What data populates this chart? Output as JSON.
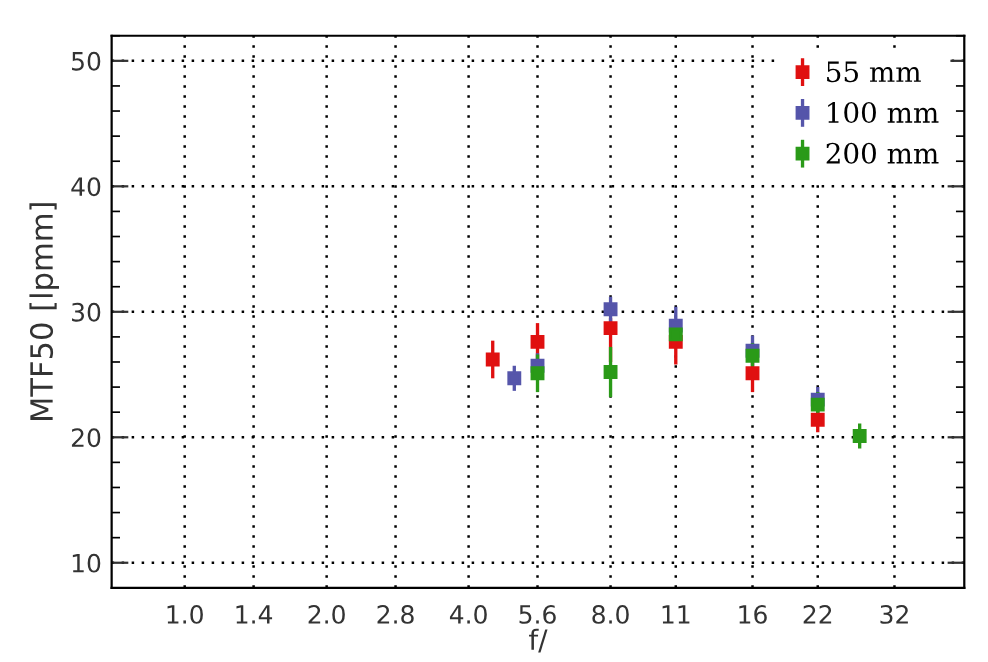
{
  "chart_data": {
    "type": "scatter",
    "xlabel": "f/",
    "ylabel": "MTF50 [lpmm]",
    "log": "x",
    "xlim": [
      0.7,
      45
    ],
    "ylim": [
      8,
      52
    ],
    "xticks": [
      {
        "value": 1,
        "label": "1.0"
      },
      1.4,
      {
        "value": 2,
        "label": "2.0"
      },
      2.8,
      {
        "value": 4,
        "label": "4.0"
      },
      5.6,
      {
        "value": 8,
        "label": "8.0"
      },
      11,
      16,
      22,
      32
    ],
    "yticks": [
      10,
      20,
      30,
      40,
      50
    ],
    "grid": true,
    "legend": "top right",
    "marker": "square",
    "series": [
      {
        "name": "55 mm",
        "color": "#e01010",
        "x": [
          4.5,
          5.6,
          8,
          11,
          16,
          22
        ],
        "values": [
          26.2,
          27.6,
          28.7,
          27.6,
          25.1,
          21.4
        ],
        "errors": [
          1.5,
          1.5,
          [
            26.0,
            29.5
          ],
          1.8,
          1.5,
          1
        ]
      },
      {
        "name": "100 mm",
        "color": "#5555aa",
        "x": [
          5,
          5.6,
          8,
          11,
          16,
          22
        ],
        "values": [
          24.7,
          25.7,
          30.2,
          28.9,
          26.9,
          23.0
        ],
        "errors": [
          1,
          1,
          1,
          1.5,
          1.2,
          1
        ]
      },
      {
        "name": "200 mm",
        "color": "#2a9a18",
        "x": [
          5.6,
          8,
          11,
          16,
          22,
          27
        ],
        "values": [
          25.1,
          25.2,
          28.2,
          26.5,
          22.6,
          20.1
        ],
        "errors": [
          1.5,
          2,
          null,
          1,
          1,
          1
        ]
      }
    ]
  }
}
